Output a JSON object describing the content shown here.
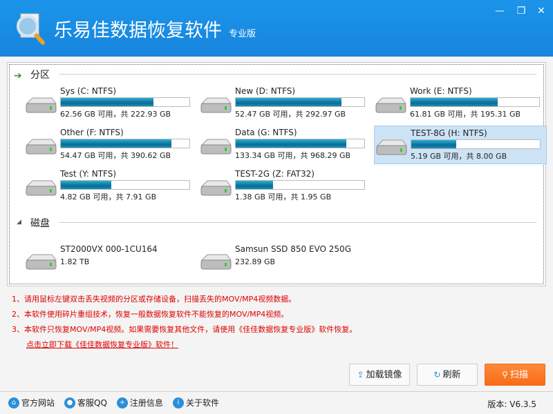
{
  "window": {
    "title": "乐易佳数据恢复软件",
    "edition": "专业版",
    "controls": {
      "minimize": "—",
      "maximize": "❐",
      "close": "✕"
    }
  },
  "partitions": {
    "heading": "分区",
    "items": [
      {
        "name": "Sys (C: NTFS)",
        "size": "62.56 GB 可用，共 222.93 GB",
        "used_fraction": 0.72,
        "selected": false
      },
      {
        "name": "New (D: NTFS)",
        "size": "52.47 GB 可用，共 292.97 GB",
        "used_fraction": 0.82,
        "selected": false
      },
      {
        "name": "Work (E: NTFS)",
        "size": "61.81 GB 可用，共 195.31 GB",
        "used_fraction": 0.68,
        "selected": false
      },
      {
        "name": "Other (F: NTFS)",
        "size": "54.47 GB 可用，共 390.62 GB",
        "used_fraction": 0.86,
        "selected": false
      },
      {
        "name": "Data (G: NTFS)",
        "size": "133.34 GB 可用，共 968.29 GB",
        "used_fraction": 0.86,
        "selected": false
      },
      {
        "name": "TEST-8G (H: NTFS)",
        "size": "5.19 GB 可用，共 8.00 GB",
        "used_fraction": 0.35,
        "selected": true
      },
      {
        "name": "Test (Y: NTFS)",
        "size": "4.82 GB 可用，共 7.91 GB",
        "used_fraction": 0.39,
        "selected": false
      },
      {
        "name": "TEST-2G (Z: FAT32)",
        "size": "1.38 GB 可用，共 1.95 GB",
        "used_fraction": 0.29,
        "selected": false
      }
    ]
  },
  "disks": {
    "heading": "磁盘",
    "items": [
      {
        "name": "ST2000VX 000-1CU164",
        "size": "1.82 TB"
      },
      {
        "name": "Samsun SSD 850 EVO 250G",
        "size": "232.89 GB"
      }
    ]
  },
  "notes": [
    "1、请用鼠标左键双击丢失视频的分区或存储设备，扫描丢失的MOV/MP4视频数据。",
    "2、本软件使用碎片重组技术，恢复一般数据恢复软件不能恢复的MOV/MP4视频。",
    "3、本软件只恢复MOV/MP4视频。如果需要恢复其他文件，请使用《佳佳数据恢复专业版》软件恢复。"
  ],
  "download_link": "点击立即下载《佳佳数据恢复专业版》软件！",
  "buttons": {
    "load_image": "加载镜像",
    "refresh": "刷新",
    "scan": "扫描"
  },
  "footer": {
    "website": "官方网站",
    "qq": "客服QQ",
    "register": "注册信息",
    "about": "关于软件",
    "version": "版本: V6.3.5"
  },
  "colors": {
    "titlebar": "#1888e0",
    "accent_red": "#e00000",
    "scan": "#f8731f"
  }
}
